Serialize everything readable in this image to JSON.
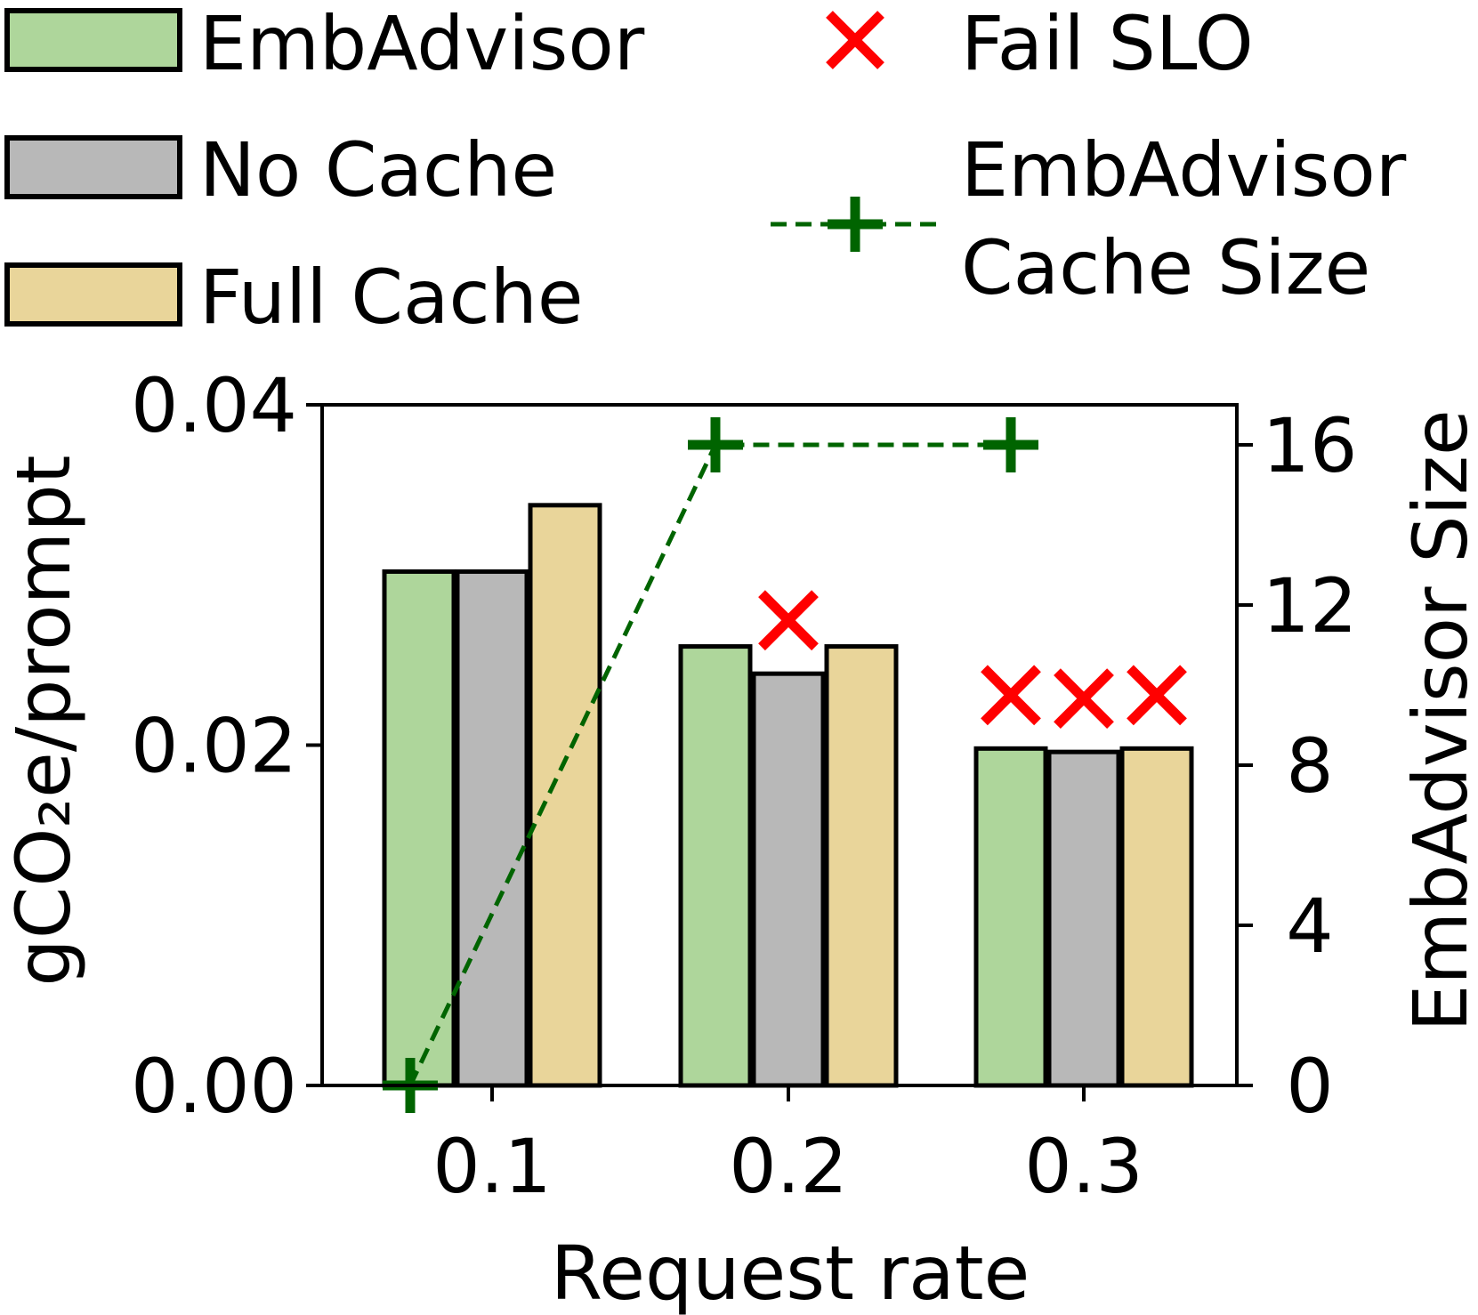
{
  "chart_data": {
    "type": "bar",
    "categories": [
      "0.1",
      "0.2",
      "0.3"
    ],
    "xlabel": "Request rate",
    "ylabel": "gCO₂e/prompt",
    "ylabel_right": "EmbAdvisor Size",
    "ylim": [
      0,
      0.04
    ],
    "ylim_right": [
      0,
      17
    ],
    "yticks": [
      "0.00",
      "0.02",
      "0.04"
    ],
    "yticks_values": [
      0,
      0.02,
      0.04
    ],
    "yticks_right": [
      "0",
      "4",
      "8",
      "12",
      "16"
    ],
    "yticks_right_values": [
      0,
      4,
      8,
      12,
      16
    ],
    "legend_position": "top",
    "series": [
      {
        "name": "EmbAdvisor",
        "color": "#aed69b",
        "values": [
          0.0302,
          0.0258,
          0.0198
        ]
      },
      {
        "name": "No Cache",
        "color": "#b8b8b8",
        "values": [
          0.0302,
          0.0242,
          0.0196
        ]
      },
      {
        "name": "Full Cache",
        "color": "#e9d59a",
        "values": [
          0.0341,
          0.0258,
          0.0198
        ]
      }
    ],
    "line_series": {
      "name": "EmbAdvisor\nCache Size",
      "name_lines": [
        "EmbAdvisor",
        "Cache Size"
      ],
      "color": "#006400",
      "x_positions": [
        0.3,
        1.0,
        2.0
      ],
      "values": [
        0,
        16,
        16
      ]
    },
    "fail_slo": {
      "name": "Fail SLO",
      "color": "#ff0000",
      "marks": [
        {
          "category": "0.2",
          "series": "No Cache"
        },
        {
          "category": "0.3",
          "series": "EmbAdvisor"
        },
        {
          "category": "0.3",
          "series": "No Cache"
        },
        {
          "category": "0.3",
          "series": "Full Cache"
        }
      ]
    }
  }
}
